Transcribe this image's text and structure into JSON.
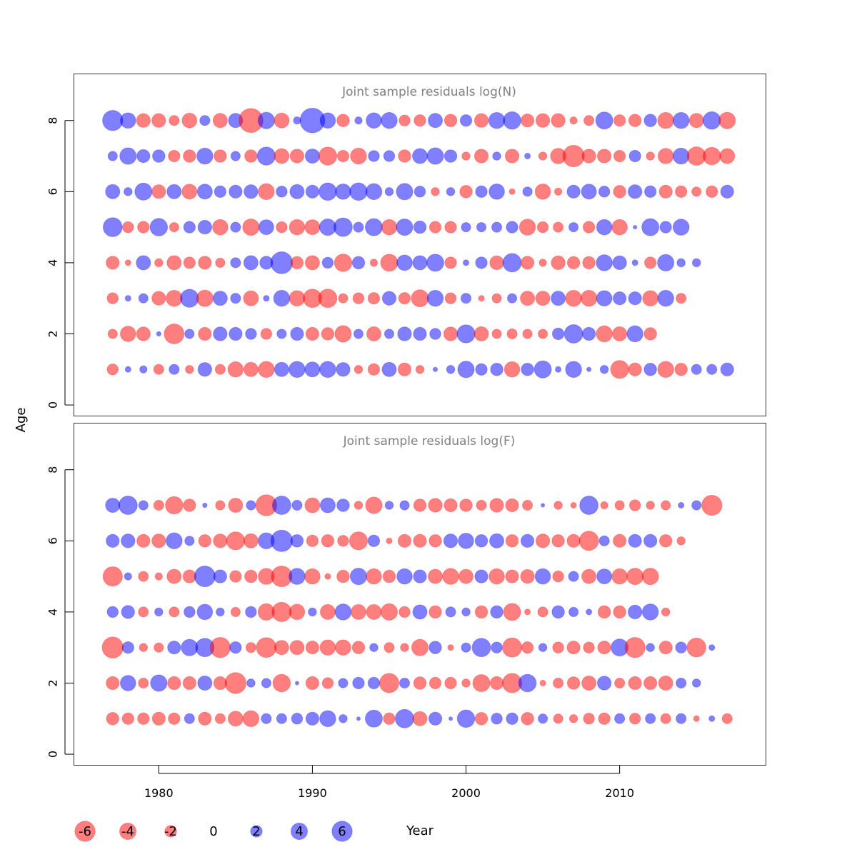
{
  "chart_data": {
    "type": "scatter",
    "xlabel": "Year",
    "ylabel": "Age",
    "xlim": [
      1974.5,
      2019.5
    ],
    "ylim": [
      -0.3,
      9.3
    ],
    "x_ticks": [
      1980,
      1990,
      2000,
      2010
    ],
    "y_ticks": [
      0,
      2,
      4,
      6,
      8
    ],
    "colors": {
      "negative": "#ff0000",
      "positive": "#0000ff"
    },
    "legend": {
      "placement": "bottom",
      "values": [
        -6,
        -4,
        -2,
        0,
        2,
        4,
        6
      ],
      "labels": [
        "-6",
        "-4",
        "-2",
        "0",
        "2",
        "4",
        "6"
      ]
    },
    "panels": [
      {
        "title": "Joint sample residuals log(N)",
        "years_start": 1977,
        "ages": [
          8,
          7,
          6,
          5,
          4,
          3,
          2,
          1
        ],
        "residuals": [
          [
            6.0,
            3.5,
            -2.8,
            -2.8,
            -1.5,
            -3.2,
            1.5,
            -3.0,
            3.0,
            -8.5,
            4.0,
            -3.3,
            0.8,
            9.0,
            3.5,
            -2.3,
            0.8,
            3.5,
            3.8,
            -1.8,
            -2.0,
            3.0,
            -2.3,
            2.0,
            -2.8,
            3.8,
            4.5,
            -2.5,
            -2.8,
            -2.8,
            -0.8,
            -1.5,
            4.3,
            -2.0,
            -2.3,
            2.3,
            -3.8,
            3.8,
            -3.0,
            4.5,
            -4.0
          ],
          [
            1.3,
            4.0,
            2.5,
            2.3,
            -2.0,
            -2.3,
            3.8,
            -2.3,
            1.3,
            -2.3,
            4.8,
            -3.2,
            -2.8,
            3.0,
            -4.8,
            -2.0,
            -3.8,
            1.8,
            1.8,
            -2.3,
            3.3,
            4.0,
            2.3,
            -1.0,
            -2.8,
            1.0,
            -2.8,
            0.5,
            -1.0,
            -3.5,
            -6.8,
            -2.8,
            -2.8,
            -2.0,
            2.0,
            -1.0,
            -3.5,
            3.8,
            -5.0,
            -4.5,
            -3.3
          ],
          [
            3.0,
            1.0,
            4.3,
            -2.8,
            3.0,
            -3.3,
            3.3,
            2.0,
            2.5,
            2.8,
            -3.8,
            1.8,
            3.0,
            2.5,
            4.5,
            3.5,
            4.5,
            3.8,
            1.0,
            4.0,
            1.8,
            -1.0,
            1.0,
            -2.3,
            2.0,
            3.5,
            -0.5,
            1.3,
            -3.5,
            -0.8,
            2.5,
            3.3,
            1.8,
            -2.3,
            2.8,
            2.0,
            -2.5,
            -2.0,
            -1.3,
            -2.0,
            2.5,
            -2.3
          ],
          [
            5.3,
            -1.8,
            -2.0,
            4.5,
            -1.3,
            2.0,
            2.8,
            -3.5,
            1.5,
            -4.0,
            3.3,
            -1.8,
            -3.5,
            -3.3,
            4.0,
            5.0,
            1.5,
            4.3,
            -3.5,
            4.0,
            2.3,
            -2.0,
            -2.0,
            1.3,
            1.3,
            1.5,
            2.0,
            -3.8,
            -1.8,
            -1.5,
            1.3,
            -2.0,
            3.5,
            -3.5,
            0.2,
            4.3,
            2.0,
            3.8
          ],
          [
            -2.5,
            -0.5,
            3.0,
            -1.0,
            -3.0,
            -2.0,
            -2.5,
            -1.3,
            1.5,
            3.0,
            2.5,
            7.0,
            -2.3,
            -3.0,
            1.8,
            -4.5,
            2.3,
            -0.8,
            -4.3,
            3.5,
            3.0,
            4.3,
            -2.0,
            0.5,
            2.0,
            -2.8,
            5.0,
            -2.5,
            -0.8,
            -2.8,
            -2.3,
            -2.3,
            3.8,
            2.8,
            0.5,
            -2.0,
            4.0,
            1.0,
            1.0
          ],
          [
            -1.8,
            0.5,
            1.3,
            -2.8,
            -3.8,
            4.8,
            -4.0,
            3.0,
            1.5,
            -3.3,
            0.5,
            3.8,
            -3.5,
            -5.0,
            -5.0,
            -1.3,
            -1.8,
            -2.0,
            2.8,
            -2.0,
            -4.3,
            3.8,
            -1.8,
            1.5,
            -0.5,
            -1.3,
            1.3,
            -3.0,
            -3.0,
            3.0,
            -3.8,
            -3.8,
            3.5,
            2.5,
            2.5,
            -3.5,
            3.8,
            -1.5
          ],
          [
            -1.3,
            -3.5,
            -2.8,
            0.3,
            -5.8,
            1.3,
            -2.5,
            2.8,
            2.5,
            1.8,
            -1.8,
            1.3,
            2.5,
            -2.5,
            -2.3,
            -4.0,
            1.3,
            -3.0,
            1.3,
            2.8,
            2.5,
            1.8,
            -2.8,
            4.8,
            -3.0,
            -1.3,
            -1.5,
            -1.3,
            -1.3,
            2.0,
            5.0,
            2.5,
            -3.8,
            -3.0,
            3.8,
            -2.3
          ],
          [
            -1.8,
            0.5,
            0.8,
            -1.5,
            1.5,
            -1.0,
            2.8,
            -1.5,
            -3.5,
            -3.0,
            -3.8,
            3.0,
            3.8,
            3.3,
            3.8,
            2.8,
            -1.0,
            -2.0,
            3.0,
            -2.5,
            -1.0,
            0.3,
            1.0,
            4.0,
            2.0,
            2.3,
            -3.5,
            2.3,
            4.3,
            0.5,
            3.8,
            0.3,
            1.0,
            -4.8,
            -2.5,
            2.3,
            -3.8,
            -2.3,
            1.5,
            1.5,
            2.5
          ]
        ]
      },
      {
        "title": "Joint sample residuals log(F)",
        "years_start": 1977,
        "ages": [
          7,
          6,
          5,
          4,
          3,
          2,
          1
        ],
        "residuals": [
          [
            3.0,
            5.0,
            1.3,
            -1.5,
            -4.5,
            -2.3,
            0.3,
            -1.3,
            -3.0,
            1.3,
            -6.5,
            5.0,
            1.5,
            -3.3,
            3.3,
            2.3,
            -1.0,
            -4.0,
            1.0,
            1.3,
            -2.3,
            -2.8,
            -2.5,
            -2.3,
            -1.5,
            -2.8,
            -2.5,
            -1.5,
            0.2,
            -1.0,
            -0.5,
            5.0,
            -0.8,
            -1.3,
            -1.8,
            -1.0,
            -1.3,
            0.5,
            1.3,
            -6.0
          ],
          [
            2.5,
            2.8,
            -2.5,
            -2.8,
            3.8,
            1.3,
            -2.3,
            -2.8,
            -4.8,
            -3.0,
            3.8,
            6.8,
            2.3,
            -2.0,
            -2.3,
            -1.8,
            -4.8,
            2.0,
            -0.5,
            -2.5,
            -2.5,
            -2.3,
            2.8,
            3.5,
            2.3,
            3.0,
            -2.3,
            2.5,
            -2.8,
            -2.3,
            -2.5,
            -5.5,
            1.5,
            -2.5,
            2.5,
            2.5,
            -2.3,
            -1.0
          ],
          [
            -5.5,
            0.8,
            -1.5,
            -0.8,
            -3.0,
            -2.5,
            6.3,
            2.5,
            -2.0,
            -2.3,
            -3.8,
            -6.3,
            3.8,
            -3.5,
            -0.5,
            -2.3,
            4.0,
            -3.5,
            -2.3,
            3.5,
            2.5,
            -3.0,
            -3.8,
            -3.0,
            2.5,
            -3.5,
            -2.5,
            -2.8,
            3.5,
            -1.8,
            1.5,
            -3.0,
            3.3,
            -3.5,
            -4.0,
            -4.0
          ],
          [
            1.8,
            2.5,
            -1.5,
            1.0,
            -1.5,
            1.8,
            3.5,
            1.0,
            -1.3,
            1.8,
            -4.0,
            -5.5,
            -3.5,
            1.0,
            -3.3,
            3.8,
            -3.3,
            -3.3,
            -4.0,
            -1.8,
            3.0,
            -2.3,
            1.5,
            1.0,
            -2.3,
            2.3,
            -4.3,
            -0.5,
            -1.5,
            2.3,
            1.3,
            0.5,
            -2.3,
            -2.3,
            2.8,
            3.8,
            -1.0
          ],
          [
            -6.5,
            2.0,
            -1.0,
            -1.3,
            2.5,
            4.0,
            5.0,
            -6.0,
            2.0,
            -1.5,
            -5.8,
            -3.0,
            -3.0,
            -2.5,
            -3.5,
            -3.5,
            -2.3,
            1.0,
            -1.5,
            -1.0,
            -4.0,
            2.3,
            -0.5,
            1.3,
            5.0,
            1.8,
            -5.5,
            -2.0,
            1.0,
            -1.8,
            -2.5,
            -1.8,
            -2.5,
            4.3,
            -6.0,
            1.0,
            -2.5,
            1.8,
            -5.3,
            0.5
          ],
          [
            -2.5,
            3.5,
            -1.5,
            4.0,
            -2.5,
            -2.5,
            3.0,
            -2.5,
            -6.5,
            1.0,
            1.3,
            -4.5,
            0.2,
            -2.5,
            -1.8,
            1.3,
            2.0,
            2.0,
            -5.5,
            1.5,
            -2.3,
            -2.0,
            -2.0,
            -1.0,
            -4.3,
            -2.5,
            -5.5,
            4.5,
            -0.5,
            -1.5,
            -2.3,
            -3.0,
            2.8,
            -1.5,
            -2.5,
            -2.5,
            -3.0,
            1.5,
            1.0
          ],
          [
            -2.3,
            -2.0,
            -2.0,
            -2.5,
            -2.0,
            1.5,
            -2.5,
            -1.5,
            -3.3,
            -3.8,
            1.5,
            1.5,
            1.8,
            2.5,
            3.8,
            1.0,
            0.2,
            4.3,
            -2.0,
            5.0,
            -3.0,
            2.5,
            0.2,
            4.5,
            -2.3,
            1.8,
            2.0,
            -2.3,
            1.3,
            -1.3,
            -1.0,
            -1.8,
            -2.0,
            1.5,
            -1.8,
            1.5,
            -1.5,
            1.5,
            -0.5,
            0.5,
            -1.5
          ]
        ]
      }
    ]
  }
}
